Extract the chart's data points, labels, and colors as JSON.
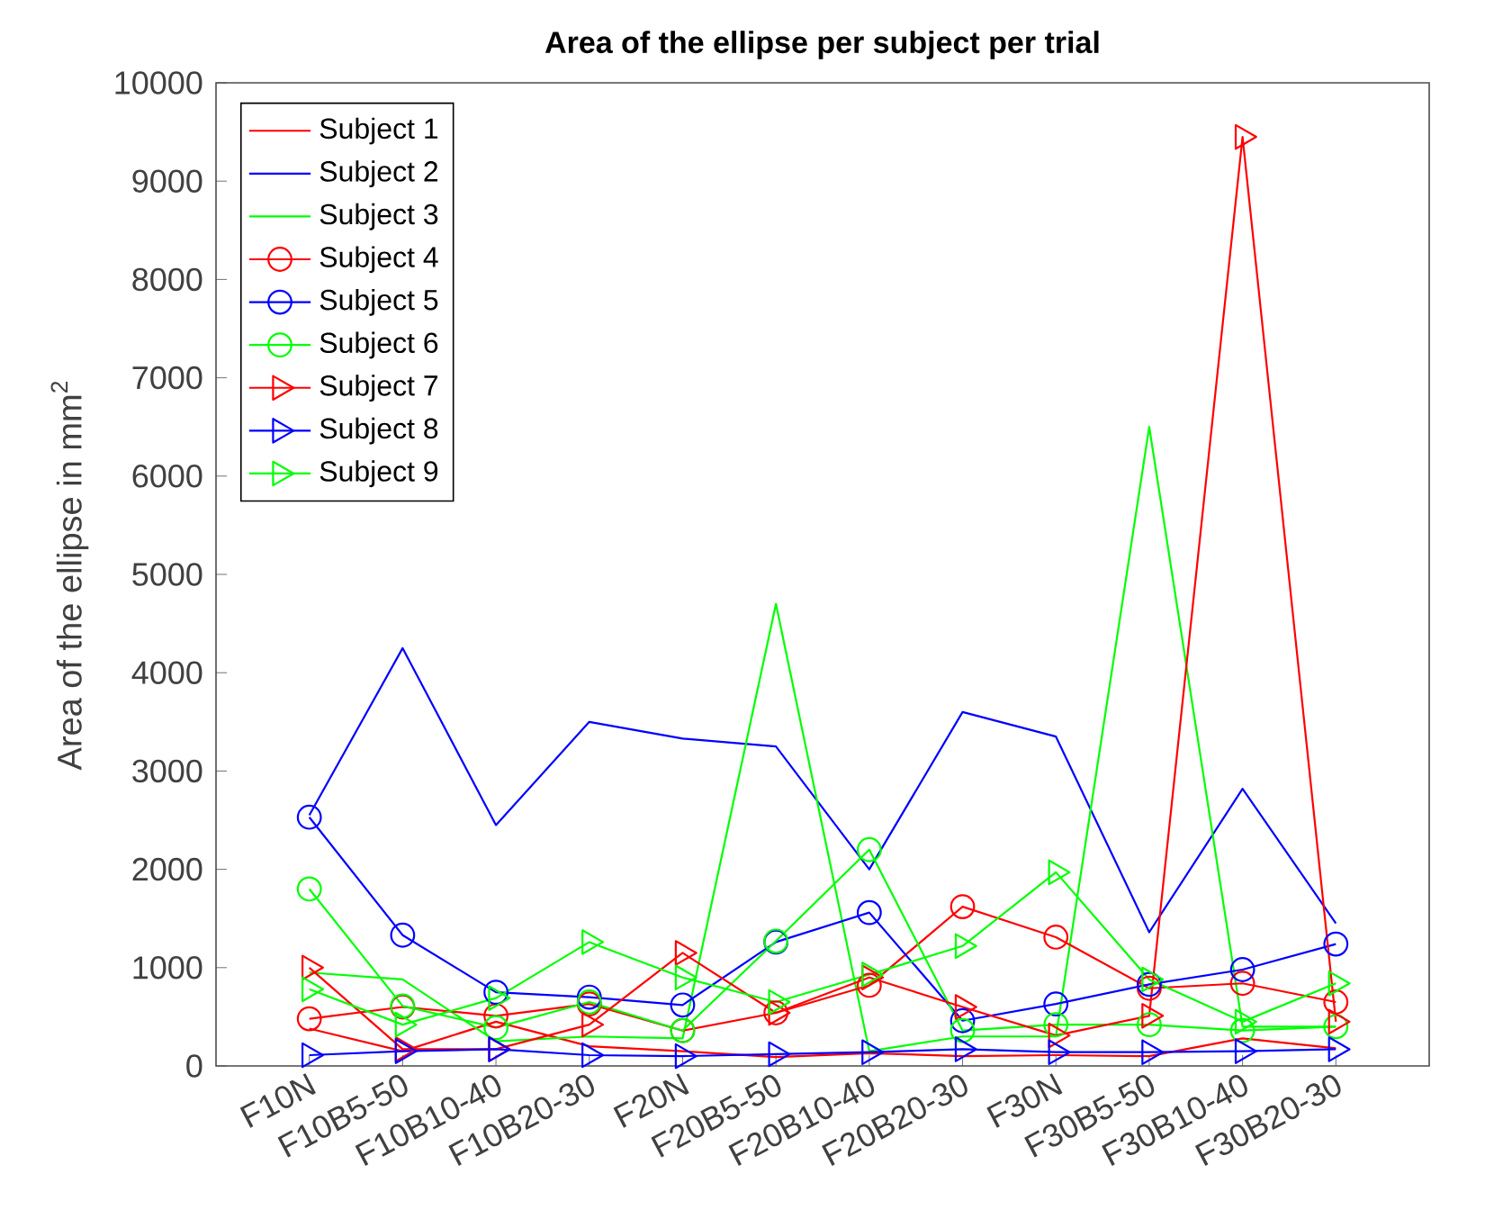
{
  "chart_data": {
    "type": "line",
    "title": "Area of the ellipse per subject per trial",
    "ylabel": "Area of the ellipse in mm$^{2}$",
    "categories": [
      "F10N",
      "F10B5-50",
      "F10B10-40",
      "F10B20-30",
      "F20N",
      "F20B5-50",
      "F20B10-40",
      "F20B20-30",
      "F30N",
      "F30B5-50",
      "F30B10-40",
      "F30B20-30"
    ],
    "ylim": [
      0,
      10000
    ],
    "yticks": [
      0,
      1000,
      2000,
      3000,
      4000,
      5000,
      6000,
      7000,
      8000,
      9000,
      10000
    ],
    "grid": false,
    "legend": "top left",
    "series": [
      {
        "name": "Subject 1",
        "color": "#ff0000",
        "marker": "none",
        "values": [
          380,
          150,
          450,
          200,
          150,
          90,
          130,
          100,
          110,
          100,
          280,
          180
        ]
      },
      {
        "name": "Subject 2",
        "color": "#0000ff",
        "marker": "none",
        "values": [
          2550,
          4250,
          2450,
          3500,
          3330,
          3250,
          2000,
          3600,
          3350,
          1360,
          2820,
          1450
        ]
      },
      {
        "name": "Subject 3",
        "color": "#00ff00",
        "marker": "none",
        "values": [
          950,
          880,
          250,
          300,
          280,
          4700,
          150,
          300,
          300,
          6500,
          400,
          400
        ]
      },
      {
        "name": "Subject 4",
        "color": "#ff0000",
        "marker": "circle",
        "values": [
          480,
          600,
          510,
          630,
          360,
          540,
          820,
          1620,
          1310,
          790,
          840,
          650
        ]
      },
      {
        "name": "Subject 5",
        "color": "#0000ff",
        "marker": "circle",
        "values": [
          2530,
          1330,
          750,
          700,
          620,
          1260,
          1560,
          460,
          630,
          830,
          980,
          1240
        ]
      },
      {
        "name": "Subject 6",
        "color": "#00ff00",
        "marker": "circle",
        "values": [
          1800,
          610,
          390,
          650,
          360,
          1270,
          2200,
          360,
          420,
          420,
          360,
          400
        ]
      },
      {
        "name": "Subject 7",
        "color": "#ff0000",
        "marker": "triangle",
        "values": [
          1000,
          170,
          170,
          420,
          1150,
          540,
          900,
          600,
          310,
          510,
          9450,
          450
        ]
      },
      {
        "name": "Subject 8",
        "color": "#0000ff",
        "marker": "triangle",
        "values": [
          110,
          150,
          170,
          110,
          100,
          120,
          140,
          170,
          140,
          140,
          150,
          170
        ]
      },
      {
        "name": "Subject 9",
        "color": "#00ff00",
        "marker": "triangle",
        "values": [
          780,
          420,
          690,
          1260,
          900,
          650,
          930,
          1220,
          1970,
          880,
          450,
          840
        ]
      }
    ]
  }
}
